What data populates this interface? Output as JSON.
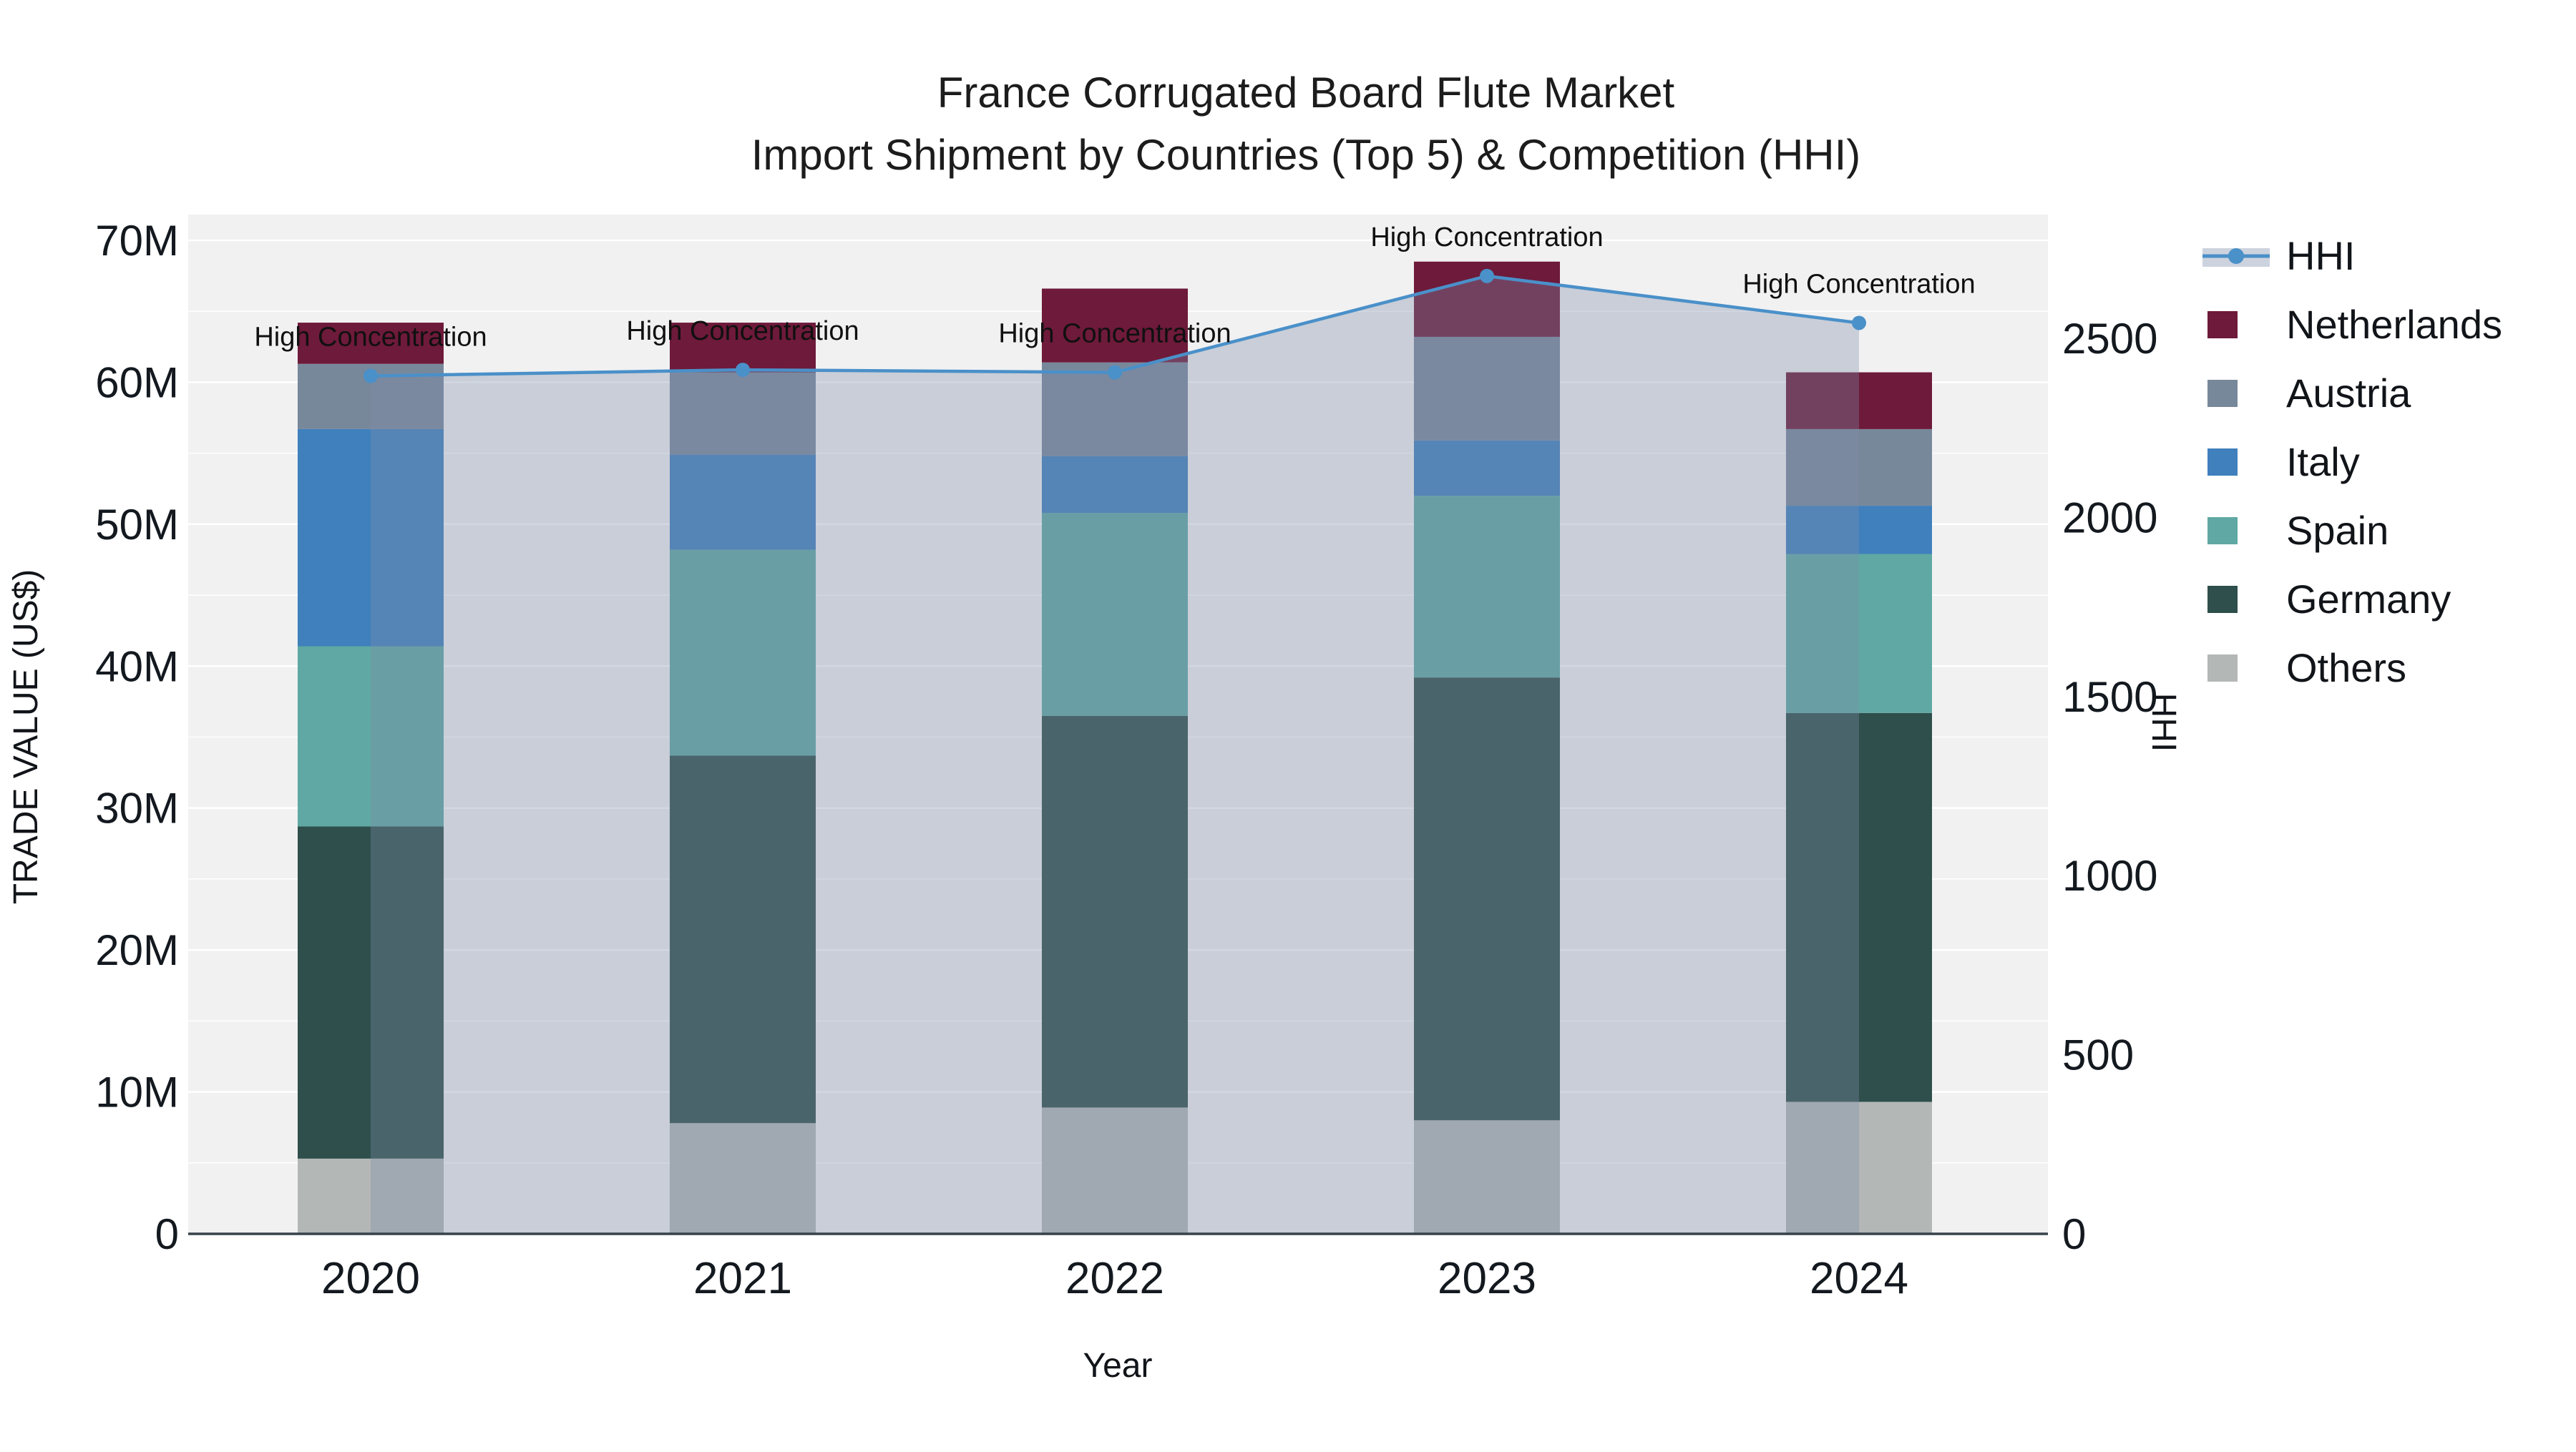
{
  "title": {
    "line1": "France Corrugated Board Flute Market",
    "line2": "Import Shipment by Countries (Top 5) & Competition (HHI)"
  },
  "axes": {
    "x_title": "Year",
    "y_left_title": "TRADE VALUE (US$)",
    "y_right_title": "HHI"
  },
  "annotation_label": "High Concentration",
  "legend": {
    "items": [
      {
        "key": "hhi",
        "label": "HHI",
        "type": "line",
        "color": "#4a90c9",
        "band": "#cdd3de"
      },
      {
        "key": "netherlands",
        "label": "Netherlands",
        "type": "swatch",
        "color": "#6e1a3a"
      },
      {
        "key": "austria",
        "label": "Austria",
        "type": "swatch",
        "color": "#78889b"
      },
      {
        "key": "italy",
        "label": "Italy",
        "type": "swatch",
        "color": "#3f80bd"
      },
      {
        "key": "spain",
        "label": "Spain",
        "type": "swatch",
        "color": "#5fa8a3"
      },
      {
        "key": "germany",
        "label": "Germany",
        "type": "swatch",
        "color": "#2e4f4b"
      },
      {
        "key": "others",
        "label": "Others",
        "type": "swatch",
        "color": "#b3b7b6"
      }
    ]
  },
  "chart_data": {
    "type": "bar",
    "subtype": "stacked-bars-with-line",
    "x": [
      "2020",
      "2021",
      "2022",
      "2023",
      "2024"
    ],
    "stack_order_bottom_to_top": [
      "Others",
      "Germany",
      "Spain",
      "Italy",
      "Austria",
      "Netherlands"
    ],
    "series": [
      {
        "name": "Others",
        "color": "#b3b7b6",
        "values_musd": [
          5.3,
          7.8,
          8.9,
          8.0,
          9.3
        ]
      },
      {
        "name": "Germany",
        "color": "#2e4f4b",
        "values_musd": [
          23.4,
          25.9,
          27.6,
          31.2,
          27.4
        ]
      },
      {
        "name": "Spain",
        "color": "#5fa8a3",
        "values_musd": [
          12.7,
          14.5,
          14.3,
          12.8,
          11.2
        ]
      },
      {
        "name": "Italy",
        "color": "#3f80bd",
        "values_musd": [
          15.3,
          6.7,
          4.0,
          3.9,
          3.4
        ]
      },
      {
        "name": "Austria",
        "color": "#78889b",
        "values_musd": [
          4.6,
          5.8,
          6.6,
          7.3,
          5.4
        ]
      },
      {
        "name": "Netherlands",
        "color": "#6e1a3a",
        "values_musd": [
          2.9,
          3.5,
          5.2,
          5.3,
          4.0
        ]
      }
    ],
    "totals_musd": [
      64.2,
      64.2,
      66.6,
      68.5,
      60.7
    ],
    "hhi_line": {
      "name": "HHI",
      "color": "#4a90c9",
      "fill": "rgba(125,140,170,0.35)",
      "values": [
        2395,
        2412,
        2405,
        2674,
        2543
      ],
      "point_annotations": [
        "High Concentration",
        "High Concentration",
        "High Concentration",
        "High Concentration",
        "High Concentration"
      ]
    },
    "y_left": {
      "label": "TRADE VALUE (US$)",
      "tick_values_musd": [
        0,
        10,
        20,
        30,
        40,
        50,
        60,
        70
      ],
      "max_musd": 70,
      "unit_suffix": "M"
    },
    "y_right": {
      "label": "HHI",
      "tick_values": [
        0,
        500,
        1000,
        1500,
        2000,
        2500
      ]
    },
    "x_label": "Year",
    "grid": "horizontal-only",
    "legend_position": "right-top"
  }
}
